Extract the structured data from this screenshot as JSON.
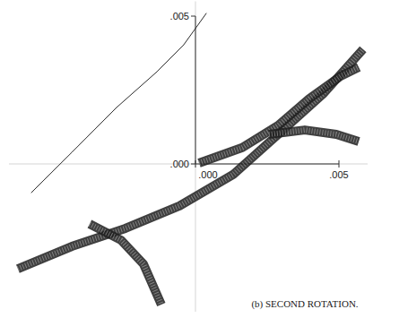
{
  "chart_data": {
    "type": "line",
    "title": "(b) SECOND ROTATION.",
    "xlim": [
      -0.0065,
      0.006
    ],
    "ylim": [
      -0.005,
      0.0055
    ],
    "xticks": [
      {
        "value": 0,
        "label": ".000"
      },
      {
        "value": 0.005,
        "label": ".005"
      }
    ],
    "yticks": [
      {
        "value": 0,
        "label": ".000"
      },
      {
        "value": 0.005,
        "label": ".005"
      }
    ],
    "grid": false,
    "series": [
      {
        "color": "#2a2a2a",
        "line_style": "solid",
        "x": [
          -0.00572,
          -0.00431,
          -0.00275,
          -0.00134,
          -0.00041,
          0.000375
        ],
        "values": [
          -0.00097,
          0.00039,
          0.00191,
          0.00312,
          0.00403,
          0.00509
        ]
      },
      {
        "color": "#1e1e1e",
        "line_style": "band",
        "x": [
          -0.00619,
          -0.00431,
          -0.00244,
          -0.00056,
          0.00131,
          0.00288,
          0.00444,
          0.00584
        ],
        "values": [
          -0.00355,
          -0.00279,
          -0.00218,
          -0.00142,
          -0.00036,
          0.001,
          0.00236,
          0.00388
        ]
      },
      {
        "color": "#1e1e1e",
        "line_style": "band",
        "x": [
          0.000125,
          0.00163,
          0.00288,
          0.00397,
          0.00506,
          0.00569
        ],
        "values": [
          3e-05,
          0.00055,
          0.0013,
          0.00221,
          0.00297,
          0.00327
        ]
      },
      {
        "color": "#1e1e1e",
        "line_style": "band",
        "x": [
          -0.00369,
          -0.00259,
          -0.00181,
          -0.00119
        ],
        "values": [
          -0.00203,
          -0.00258,
          -0.00339,
          -0.00476
        ]
      },
      {
        "color": "#1e1e1e",
        "line_style": "band",
        "x": [
          0.00256,
          0.00381,
          0.00491,
          0.00569
        ],
        "values": [
          0.001,
          0.00115,
          0.001,
          0.00076
        ]
      }
    ]
  }
}
